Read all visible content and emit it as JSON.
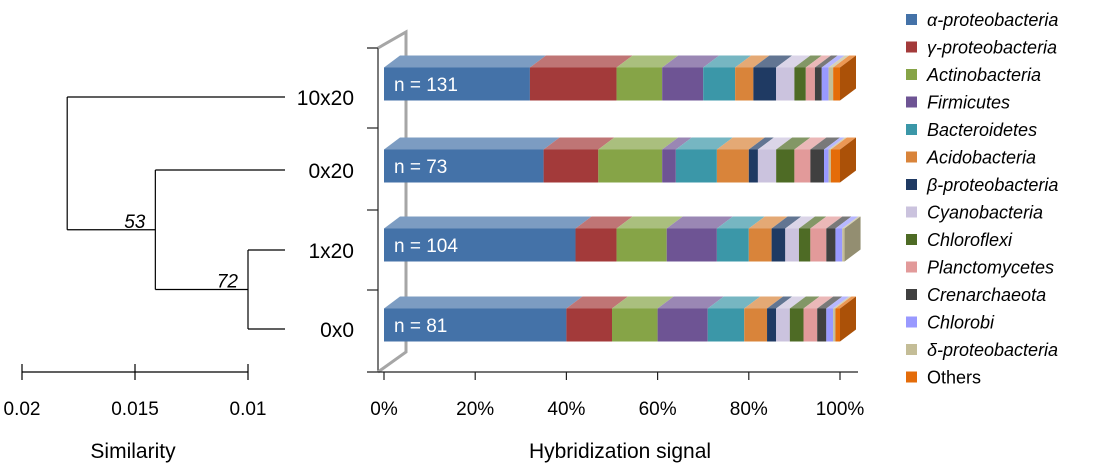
{
  "colors": {
    "α-proteobacteria": "#4472A8",
    "γ-proteobacteria": "#A33A3A",
    "Actinobacteria": "#86A447",
    "Firmicutes": "#6E5494",
    "Bacteroidetes": "#3B97A8",
    "Acidobacteria": "#D9843A",
    "β-proteobacteria": "#1F3A63",
    "Cyanobacteria": "#CBC3DE",
    "Chloroflexi": "#4E6B25",
    "Planctomycetes": "#E29A9A",
    "Crenarchaeota": "#404040",
    "Chlorobi": "#9999FF",
    "δ-proteobacteria": "#C4BD97",
    "Others": "#E46C0A"
  },
  "chart_data": [
    {
      "type": "bar",
      "orientation": "horizontal",
      "stacked": true,
      "percent": true,
      "categories": [
        "10x20",
        "0x20",
        "1x20",
        "0x0"
      ],
      "bar_labels": [
        "n = 131",
        "n = 73",
        "n = 104",
        "n = 81"
      ],
      "series": [
        {
          "name": "α-proteobacteria",
          "values": [
            32,
            35,
            42,
            40
          ]
        },
        {
          "name": "γ-proteobacteria",
          "values": [
            19,
            12,
            9,
            10
          ]
        },
        {
          "name": "Actinobacteria",
          "values": [
            10,
            14,
            11,
            10
          ]
        },
        {
          "name": "Firmicutes",
          "values": [
            9,
            3,
            11,
            11
          ]
        },
        {
          "name": "Bacteroidetes",
          "values": [
            7,
            9,
            7,
            8
          ]
        },
        {
          "name": "Acidobacteria",
          "values": [
            4,
            7,
            5,
            5
          ]
        },
        {
          "name": "β-proteobacteria",
          "values": [
            5,
            2,
            3,
            2
          ]
        },
        {
          "name": "Cyanobacteria",
          "values": [
            4,
            4,
            3,
            3
          ]
        },
        {
          "name": "Chloroflexi",
          "values": [
            2.5,
            4,
            2.5,
            3
          ]
        },
        {
          "name": "Planctomycetes",
          "values": [
            2,
            3.5,
            3.5,
            3
          ]
        },
        {
          "name": "Crenarchaeota",
          "values": [
            1.5,
            3,
            2,
            2
          ]
        },
        {
          "name": "Chlorobi",
          "values": [
            1.5,
            1,
            1.5,
            1.5
          ]
        },
        {
          "name": "δ-proteobacteria",
          "values": [
            1,
            0.5,
            0.5,
            0.5
          ]
        },
        {
          "name": "Others",
          "values": [
            1.5,
            2,
            0,
            1
          ]
        }
      ],
      "xlabel": "Hybridization signal",
      "xlim": [
        0,
        100
      ],
      "xticks": [
        "0%",
        "20%",
        "40%",
        "60%",
        "80%",
        "100%"
      ],
      "legend": "right"
    },
    {
      "type": "dendrogram",
      "leaves": [
        "10x20",
        "0x20",
        "1x20",
        "0x0"
      ],
      "merges": [
        {
          "children": [
            "1x20",
            "0x0"
          ],
          "similarity": 0.01,
          "label": "72"
        },
        {
          "children": [
            "0x20",
            "(1x20,0x0)"
          ],
          "similarity": 0.0141,
          "label": "53"
        },
        {
          "children": [
            "10x20",
            "(0x20,(1x20,0x0))"
          ],
          "similarity": 0.018,
          "label": ""
        }
      ],
      "xlabel": "Similarity",
      "xlim": [
        0.02,
        0.01
      ],
      "xticks": [
        "0.02",
        "0.015",
        "0.01"
      ]
    }
  ]
}
